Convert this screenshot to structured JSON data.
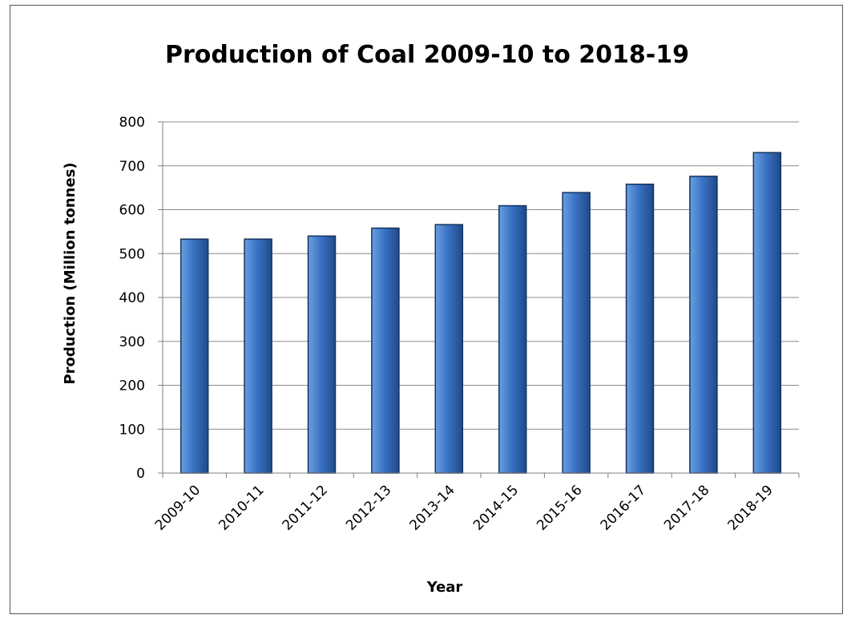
{
  "chart_data": {
    "type": "bar",
    "title": "Production of Coal  2009-10 to 2018-19",
    "xlabel": "Year",
    "ylabel": "Production (Million tonnes)",
    "ylim": [
      0,
      800
    ],
    "yticks": [
      0,
      100,
      200,
      300,
      400,
      500,
      600,
      700,
      800
    ],
    "grid": true,
    "categories": [
      "2009-10",
      "2010-11",
      "2011-12",
      "2012-13",
      "2013-14",
      "2014-15",
      "2015-16",
      "2016-17",
      "2017-18",
      "2018-19"
    ],
    "values": [
      533,
      533,
      540,
      558,
      566,
      609,
      639,
      658,
      676,
      730
    ],
    "colors": {
      "bar_light": "#6aa0e0",
      "bar_mid": "#3a73c4",
      "bar_dark": "#1f4a8a",
      "grid": "#8c8c8c",
      "axis": "#7f7f7f"
    }
  }
}
